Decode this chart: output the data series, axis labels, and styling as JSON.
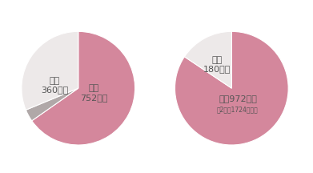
{
  "left_pie": {
    "values": [
      752,
      40,
      360
    ],
    "colors": [
      "#d4879c",
      "#b0a8a8",
      "#ede9e9"
    ],
    "startangle": 90
  },
  "right_pie": {
    "values": [
      972,
      180
    ],
    "colors": [
      "#d4879c",
      "#ede9e9"
    ],
    "startangle": 90
  },
  "bg_color": "#ffffff",
  "text_color": "#555555",
  "font_size_large": 8,
  "font_size_small": 6.0,
  "font_size_sub": 5.5
}
